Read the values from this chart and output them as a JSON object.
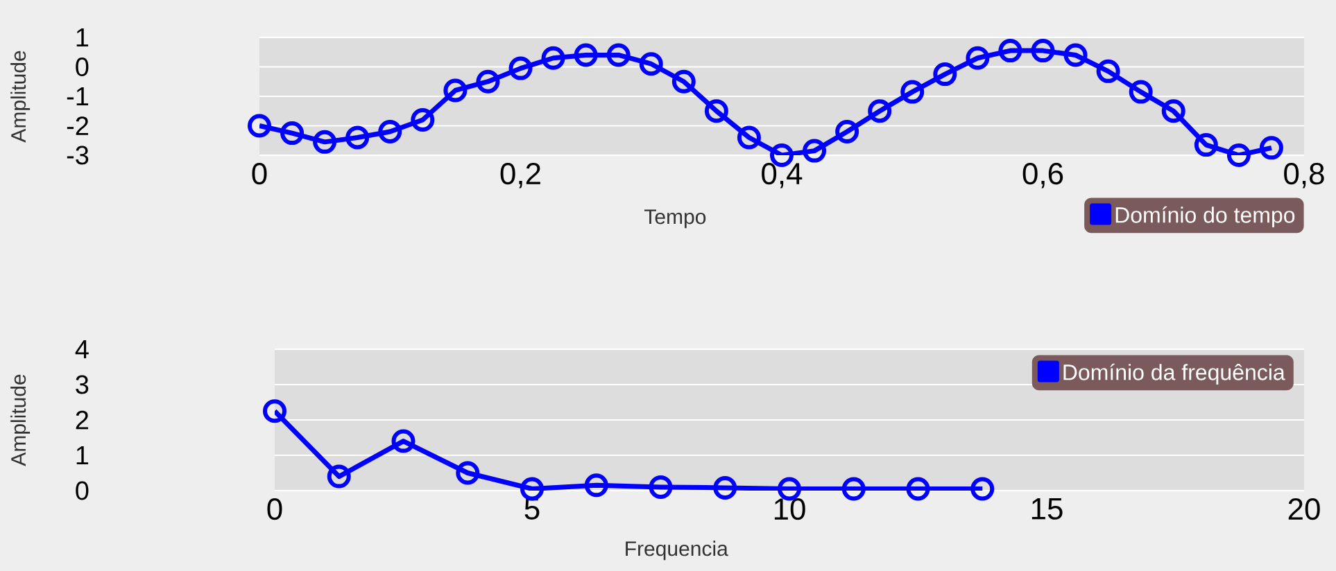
{
  "chart_data": [
    {
      "type": "line",
      "xlabel": "Tempo",
      "ylabel": "Amplitude",
      "x": [
        0,
        0.025,
        0.05,
        0.075,
        0.1,
        0.125,
        0.15,
        0.175,
        0.2,
        0.225,
        0.25,
        0.275,
        0.3,
        0.325,
        0.35,
        0.375,
        0.4,
        0.425,
        0.45,
        0.475,
        0.5,
        0.525,
        0.55,
        0.575,
        0.6,
        0.625,
        0.65,
        0.675,
        0.7,
        0.725,
        0.75,
        0.775
      ],
      "series": [
        {
          "name": "Domínio do tempo",
          "color": "#0000ff",
          "values": [
            -2.0,
            -2.25,
            -2.55,
            -2.4,
            -2.2,
            -1.8,
            -0.8,
            -0.5,
            -0.05,
            0.3,
            0.4,
            0.4,
            0.1,
            -0.5,
            -1.5,
            -2.4,
            -3.0,
            -2.85,
            -2.2,
            -1.5,
            -0.85,
            -0.25,
            0.3,
            0.55,
            0.55,
            0.4,
            -0.15,
            -0.85,
            -1.5,
            -2.65,
            -3.0,
            -2.75
          ]
        }
      ],
      "xlim": [
        0,
        0.8
      ],
      "xticks": [
        0,
        {
          "value": 0.2,
          "label": "0,2"
        },
        {
          "value": 0.4,
          "label": "0,4"
        },
        {
          "value": 0.6,
          "label": "0,6"
        },
        {
          "value": 0.8,
          "label": "0,8"
        }
      ],
      "ylim": [
        -3,
        1
      ],
      "yticks": [
        -3,
        -2,
        -1,
        0,
        1
      ],
      "grid": "y",
      "legend": "bottom right",
      "marker": "circle"
    },
    {
      "type": "line",
      "xlabel": "Frequencia",
      "ylabel": "Amplitude",
      "x": [
        0,
        1.25,
        2.5,
        3.75,
        5,
        6.25,
        7.5,
        8.75,
        10,
        11.25,
        12.5,
        13.75
      ],
      "series": [
        {
          "name": "Domínio da frequência",
          "color": "#0000ff",
          "values": [
            2.25,
            0.4,
            1.4,
            0.5,
            0.05,
            0.15,
            0.1,
            0.08,
            0.05,
            0.05,
            0.05,
            0.05
          ]
        }
      ],
      "xlim": [
        0,
        20
      ],
      "xticks": [
        0,
        5,
        10,
        15,
        20
      ],
      "ylim": [
        0,
        4
      ],
      "yticks": [
        0,
        1,
        2,
        3,
        4
      ],
      "grid": "y",
      "legend": "top right",
      "marker": "circle"
    }
  ]
}
